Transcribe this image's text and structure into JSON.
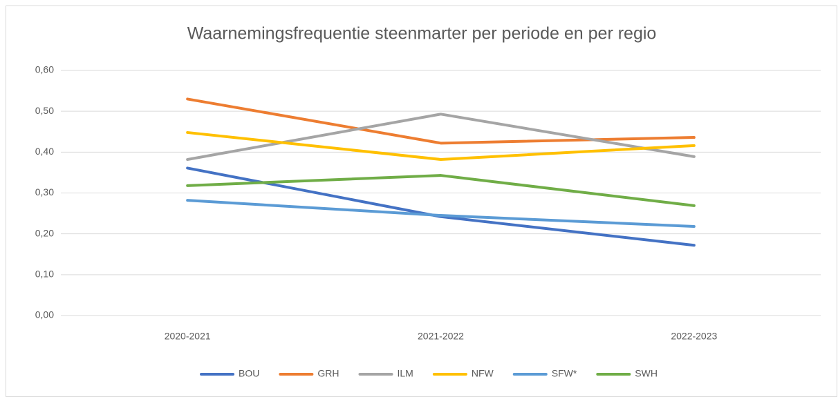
{
  "chart_data": {
    "type": "line",
    "title": "Waarnemingsfrequentie steenmarter per periode en per regio",
    "categories": [
      "2020-2021",
      "2021-2022",
      "2022-2023"
    ],
    "series": [
      {
        "name": "BOU",
        "color": "#4472c4",
        "values": [
          0.361,
          0.242,
          0.172
        ]
      },
      {
        "name": "GRH",
        "color": "#ed7d31",
        "values": [
          0.53,
          0.422,
          0.436
        ]
      },
      {
        "name": "ILM",
        "color": "#a5a5a5",
        "values": [
          0.382,
          0.493,
          0.389
        ]
      },
      {
        "name": "NFW",
        "color": "#ffc000",
        "values": [
          0.448,
          0.382,
          0.416
        ]
      },
      {
        "name": "SFW*",
        "color": "#5b9bd5",
        "values": [
          0.282,
          0.245,
          0.218
        ]
      },
      {
        "name": "SWH",
        "color": "#70ad47",
        "values": [
          0.318,
          0.343,
          0.269
        ]
      }
    ],
    "ylim": [
      0,
      0.6
    ],
    "yticks": [
      {
        "value": 0,
        "label": "0,00"
      },
      {
        "value": 0.1,
        "label": "0,10"
      },
      {
        "value": 0.2,
        "label": "0,20"
      },
      {
        "value": 0.3,
        "label": "0,30"
      },
      {
        "value": 0.4,
        "label": "0,40"
      },
      {
        "value": 0.5,
        "label": "0,50"
      },
      {
        "value": 0.6,
        "label": "0,60"
      }
    ],
    "grid": true,
    "legend": "bottom"
  }
}
